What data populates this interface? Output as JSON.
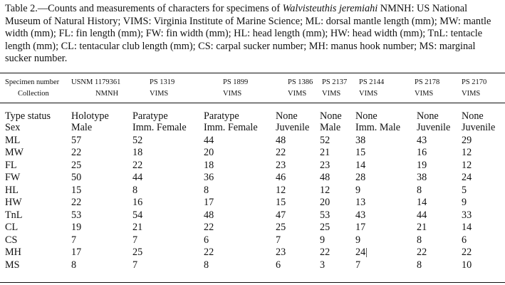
{
  "caption": {
    "prefix": "Table 2.—Counts and measurements of characters for specimens of ",
    "species": "Walvisteuthis jeremiahi",
    "rest": " NMNH: US National Museum of Natural History; VIMS: Virginia Institute of Marine Science; ML: dorsal mantle length (mm); MW: mantle width (mm); FL: fin length (mm); FW: fin width (mm); HL: head length (mm); HW: head width (mm); TnL: tentacle length (mm); CL: tentacular club length (mm); CS: carpal sucker number; MH: manus hook number; MS: marginal sucker number."
  },
  "table": {
    "specimen_label": "Specimen number",
    "collection_label": "Collection",
    "columns": [
      {
        "specimen": "USNM 1179361",
        "collection": "NMNH"
      },
      {
        "specimen": "PS 1319",
        "collection": "VIMS"
      },
      {
        "specimen": "PS 1899",
        "collection": "VIMS"
      },
      {
        "specimen": "PS 1386",
        "collection": "VIMS"
      },
      {
        "specimen": "PS 2137",
        "collection": "VIMS"
      },
      {
        "specimen": "PS 2144",
        "collection": "VIMS"
      },
      {
        "specimen": "PS 2178",
        "collection": "VIMS"
      },
      {
        "specimen": "PS 2170",
        "collection": "VIMS"
      }
    ],
    "rows": [
      {
        "label": "Type status",
        "values": [
          "Holotype",
          "Paratype",
          "Paratype",
          "None",
          "None",
          "None",
          "None",
          "None"
        ]
      },
      {
        "label": "Sex",
        "values": [
          "Male",
          "Imm. Female",
          "Imm. Female",
          "Juvenile",
          "Male",
          "Imm. Male",
          "Juvenile",
          "Juvenile"
        ]
      },
      {
        "label": "ML",
        "values": [
          "57",
          "52",
          "44",
          "48",
          "52",
          "38",
          "43",
          "29"
        ]
      },
      {
        "label": "MW",
        "values": [
          "22",
          "18",
          "20",
          "22",
          "21",
          "15",
          "16",
          "12"
        ]
      },
      {
        "label": "FL",
        "values": [
          "25",
          "22",
          "18",
          "23",
          "23",
          "14",
          "19",
          "12"
        ]
      },
      {
        "label": "FW",
        "values": [
          "50",
          "44",
          "36",
          "46",
          "48",
          "28",
          "38",
          "24"
        ]
      },
      {
        "label": "HL",
        "values": [
          "15",
          "8",
          "8",
          "12",
          "12",
          "9",
          "8",
          "5"
        ]
      },
      {
        "label": "HW",
        "values": [
          "22",
          "16",
          "17",
          "15",
          "20",
          "13",
          "14",
          "9"
        ]
      },
      {
        "label": "TnL",
        "values": [
          "53",
          "54",
          "48",
          "47",
          "53",
          "43",
          "44",
          "33"
        ]
      },
      {
        "label": "CL",
        "values": [
          "19",
          "21",
          "22",
          "25",
          "25",
          "17",
          "21",
          "14"
        ]
      },
      {
        "label": "CS",
        "values": [
          "7",
          "7",
          "6",
          "7",
          "9",
          "9",
          "8",
          "6"
        ]
      },
      {
        "label": "MH",
        "values": [
          "17",
          "25",
          "22",
          "23",
          "22",
          "24|",
          "22",
          "22"
        ]
      },
      {
        "label": "MS",
        "values": [
          "8",
          "7",
          "8",
          "6",
          "3",
          "7",
          "8",
          "10"
        ]
      }
    ]
  }
}
